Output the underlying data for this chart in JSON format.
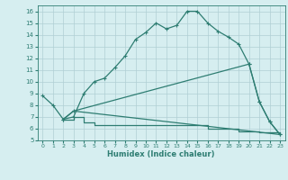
{
  "line1_x": [
    0,
    1,
    2,
    3,
    4,
    5,
    6,
    7,
    8,
    9,
    10,
    11,
    12,
    13,
    14,
    15,
    16,
    17,
    18,
    19,
    20,
    21,
    22,
    23
  ],
  "line1_y": [
    8.8,
    8.0,
    6.8,
    7.0,
    9.0,
    10.0,
    10.3,
    11.2,
    12.2,
    13.6,
    14.2,
    15.0,
    14.5,
    14.8,
    16.0,
    16.0,
    15.0,
    14.3,
    13.8,
    13.2,
    11.5,
    8.3,
    6.6,
    5.5
  ],
  "line2_x": [
    2,
    3,
    4,
    5,
    6,
    7,
    8,
    9,
    10,
    11,
    12,
    13,
    14,
    15,
    16,
    17,
    18,
    19,
    20,
    21,
    22,
    23
  ],
  "line2_y": [
    6.8,
    7.0,
    6.5,
    6.3,
    6.3,
    6.3,
    6.3,
    6.3,
    6.3,
    6.3,
    6.3,
    6.3,
    6.3,
    6.3,
    6.0,
    6.0,
    6.0,
    5.8,
    5.8,
    5.7,
    5.7,
    5.5
  ],
  "line3_x": [
    2,
    3,
    23
  ],
  "line3_y": [
    6.8,
    7.5,
    5.5
  ],
  "line4_x": [
    2,
    3,
    20,
    21,
    22,
    23
  ],
  "line4_y": [
    6.8,
    7.5,
    11.5,
    8.3,
    6.6,
    5.5
  ],
  "color": "#2e7d72",
  "bg_color": "#d6eef0",
  "grid_color": "#b0cfd4",
  "xlim": [
    -0.5,
    23.5
  ],
  "ylim": [
    5,
    16.5
  ],
  "yticks": [
    5,
    6,
    7,
    8,
    9,
    10,
    11,
    12,
    13,
    14,
    15,
    16
  ],
  "xticks": [
    0,
    1,
    2,
    3,
    4,
    5,
    6,
    7,
    8,
    9,
    10,
    11,
    12,
    13,
    14,
    15,
    16,
    17,
    18,
    19,
    20,
    21,
    22,
    23
  ],
  "xlabel": "Humidex (Indice chaleur)",
  "marker": "+",
  "markersize": 3.0,
  "linewidth": 0.9
}
